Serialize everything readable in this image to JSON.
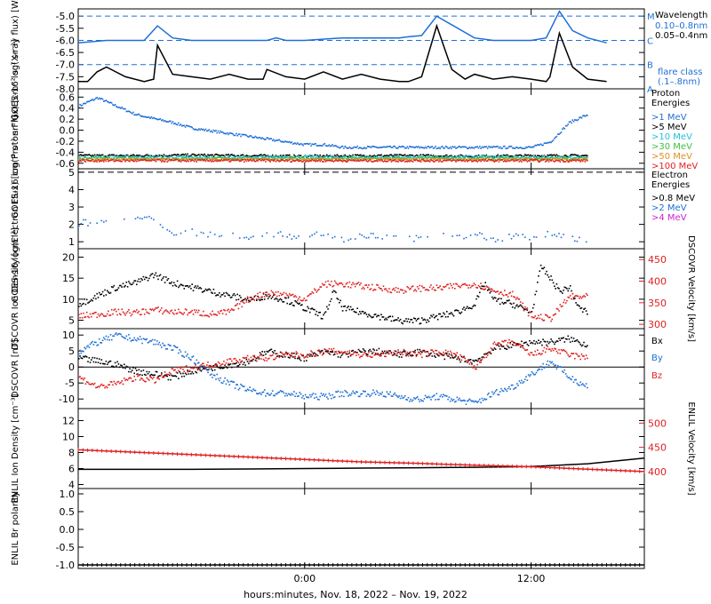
{
  "colors": {
    "black": "#000000",
    "blue": "#1f6fd6",
    "cyan": "#21c0e0",
    "green": "#40c040",
    "orange": "#e09020",
    "red": "#e02020",
    "magenta": "#d020d0"
  },
  "time_axis": {
    "xlabel": "hours:minutes, Nov. 18, 2022 – Nov. 19, 2022",
    "xlim_hours": [
      -12,
      18
    ],
    "ticks_hours": [
      0,
      12
    ],
    "tick_labels": [
      "0:00",
      "12:00"
    ]
  },
  "chart_data": [
    {
      "id": "xray",
      "type": "line",
      "ylabel": "GOES-16 log(X-ray flux) [W m⁻²]",
      "ylim": [
        -8,
        -4.7
      ],
      "yticks": [
        -8.0,
        -7.5,
        -7.0,
        -6.5,
        -6.0,
        -5.5,
        -5.0
      ],
      "tick_labels": [
        "-8.0",
        "-7.5",
        "-7.0",
        "-6.5",
        "-6.0",
        "-5.5",
        "-5.0"
      ],
      "flare_classes": [
        {
          "level": -5,
          "label": "M"
        },
        {
          "level": -6,
          "label": "C"
        },
        {
          "level": -7,
          "label": "B"
        },
        {
          "level": -8,
          "label": "A"
        }
      ],
      "legend_title": "Wavelength",
      "flare_class_note": [
        "flare class",
        "(.1–.8nm)"
      ],
      "series": [
        {
          "name": "0.10–0.8nm",
          "color": "#1f6fd6",
          "x": [
            -12,
            -10.5,
            -8.5,
            -7.8,
            -7,
            -6,
            -4,
            -2,
            -1.5,
            -1,
            0,
            2,
            4,
            5,
            5.5,
            6.2,
            7,
            9,
            10,
            11,
            12,
            12.8,
            13.5,
            14.2,
            15,
            16
          ],
          "y": [
            -6.1,
            -6.0,
            -6.0,
            -5.4,
            -5.9,
            -6.0,
            -6.0,
            -6.0,
            -5.9,
            -6.0,
            -6.0,
            -5.9,
            -5.9,
            -5.9,
            -5.85,
            -5.8,
            -5.0,
            -5.9,
            -6.0,
            -6.0,
            -6.0,
            -5.9,
            -4.8,
            -5.6,
            -5.9,
            -6.1
          ]
        },
        {
          "name": "0.05–0.4nm",
          "color": "#000000",
          "x": [
            -12,
            -11.5,
            -11,
            -10.5,
            -9.5,
            -8.5,
            -8,
            -7.8,
            -7,
            -6,
            -5,
            -4,
            -3,
            -2.2,
            -2,
            -1,
            0,
            1,
            2,
            3,
            4,
            5,
            5.5,
            6.2,
            7,
            7.8,
            8.5,
            9,
            10,
            11,
            12,
            12.8,
            13,
            13.5,
            14.2,
            15,
            16
          ],
          "y": [
            -7.7,
            -7.7,
            -7.3,
            -7.1,
            -7.5,
            -7.7,
            -7.6,
            -6.2,
            -7.4,
            -7.5,
            -7.6,
            -7.4,
            -7.6,
            -7.6,
            -7.2,
            -7.5,
            -7.6,
            -7.3,
            -7.6,
            -7.4,
            -7.6,
            -7.7,
            -7.7,
            -7.5,
            -5.4,
            -7.2,
            -7.6,
            -7.4,
            -7.6,
            -7.5,
            -7.6,
            -7.7,
            -7.5,
            -5.7,
            -7.1,
            -7.6,
            -7.7
          ]
        }
      ]
    },
    {
      "id": "proton",
      "type": "scatter",
      "ylabel": "GOES-16 log(Proton Flux) [cm⁻² s⁻¹ sr⁻¹]",
      "ylim": [
        -0.7,
        0.75
      ],
      "yticks": [
        -0.6,
        -0.4,
        -0.2,
        0.0,
        0.2,
        0.4,
        0.6
      ],
      "tick_labels": [
        "-0.6",
        "-0.4",
        "-0.2",
        "0.0",
        "0.2",
        "0.4",
        "0.6"
      ],
      "legend_title": [
        "Proton",
        "Energies"
      ],
      "series": [
        {
          "name": ">1 MeV",
          "color": "#1f6fd6",
          "x": [
            -12,
            -11,
            -10,
            -9,
            -8,
            -7,
            -6,
            -5,
            -4,
            -3,
            -2,
            -1,
            0,
            1,
            2,
            3,
            4,
            5,
            6,
            7,
            8,
            9,
            10,
            11,
            12,
            13,
            14,
            15
          ],
          "y": [
            0.45,
            0.6,
            0.45,
            0.3,
            0.22,
            0.15,
            0.05,
            0.0,
            -0.05,
            -0.1,
            -0.15,
            -0.2,
            -0.25,
            -0.25,
            -0.3,
            -0.3,
            -0.3,
            -0.3,
            -0.3,
            -0.3,
            -0.3,
            -0.3,
            -0.3,
            -0.3,
            -0.3,
            -0.2,
            0.15,
            0.3
          ]
        },
        {
          "name": ">5 MeV",
          "color": "#000000",
          "x": [
            -12,
            -9,
            -6,
            -3,
            0,
            3,
            6,
            9,
            12,
            15
          ],
          "y": [
            -0.45,
            -0.45,
            -0.44,
            -0.45,
            -0.46,
            -0.45,
            -0.45,
            -0.46,
            -0.45,
            -0.45
          ]
        },
        {
          "name": ">10 MeV",
          "color": "#21c0e0",
          "x": [
            -12,
            -9,
            -6,
            -3,
            0,
            3,
            6,
            9,
            12,
            15
          ],
          "y": [
            -0.48,
            -0.47,
            -0.48,
            -0.48,
            -0.47,
            -0.48,
            -0.48,
            -0.47,
            -0.48,
            -0.48
          ]
        },
        {
          "name": ">30 MeV",
          "color": "#40c040",
          "x": [
            -12,
            -9,
            -6,
            -3,
            0,
            3,
            6,
            9,
            12,
            15
          ],
          "y": [
            -0.5,
            -0.5,
            -0.5,
            -0.5,
            -0.5,
            -0.5,
            -0.5,
            -0.5,
            -0.5,
            -0.5
          ]
        },
        {
          "name": ">50 MeV",
          "color": "#e09020",
          "x": [
            -12,
            -9,
            -6,
            -3,
            0,
            3,
            6,
            9,
            12,
            15
          ],
          "y": [
            -0.52,
            -0.52,
            -0.52,
            -0.52,
            -0.52,
            -0.52,
            -0.52,
            -0.52,
            -0.52,
            -0.52
          ]
        },
        {
          "name": ">100 MeV",
          "color": "#e02020",
          "x": [
            -12,
            -9,
            -6,
            -3,
            0,
            3,
            6,
            9,
            12,
            15
          ],
          "y": [
            -0.54,
            -0.54,
            -0.54,
            -0.54,
            -0.54,
            -0.54,
            -0.54,
            -0.54,
            -0.54,
            -0.54
          ]
        }
      ]
    },
    {
      "id": "electron",
      "type": "scatter",
      "ylabel": "GOES-16 log(Electron Flux) [cm⁻² s⁻¹ sr⁻¹]",
      "ylim": [
        0.6,
        5.2
      ],
      "yticks": [
        1,
        2,
        3,
        4,
        5
      ],
      "tick_labels": [
        "1",
        "2",
        "3",
        "4",
        "5"
      ],
      "reference_line": 5,
      "legend_title": [
        "Electron",
        "Energies"
      ],
      "series": [
        {
          "name": ">0.8 MeV",
          "color": "#000000",
          "x": [],
          "y": []
        },
        {
          "name": ">2 MeV",
          "color": "#1f6fd6",
          "x": [
            -12,
            -11,
            -10,
            -9,
            -8.5,
            -8,
            -7,
            -6,
            -5,
            -4,
            -3,
            -2,
            -1,
            0,
            1,
            2,
            3,
            4,
            5,
            6,
            7,
            8,
            9,
            10,
            11,
            12,
            13,
            14,
            15
          ],
          "y": [
            2.1,
            2.2,
            2.1,
            2.4,
            2.6,
            2.2,
            1.5,
            1.6,
            1.4,
            1.5,
            1.3,
            1.5,
            1.4,
            1.3,
            1.5,
            1.2,
            1.4,
            1.3,
            1.4,
            1.2,
            1.4,
            1.3,
            1.5,
            1.1,
            1.4,
            1.2,
            1.5,
            1.3,
            1.0
          ]
        },
        {
          "name": ">4 MeV",
          "color": "#d020d0",
          "x": [],
          "y": []
        }
      ]
    },
    {
      "id": "dscovr_density",
      "type": "scatter",
      "ylabel": "DSCOVR Ion Density [cm⁻³]",
      "ylim": [
        3,
        22
      ],
      "yticks": [
        5,
        10,
        15,
        20
      ],
      "tick_labels": [
        "5",
        "10",
        "15",
        "20"
      ],
      "y2label": "DSCOVR Velocity [km/s]",
      "y2lim": [
        290,
        475
      ],
      "y2ticks": [
        300,
        350,
        400,
        450
      ],
      "y2tick_labels": [
        "300",
        "350",
        "400",
        "450"
      ],
      "series": [
        {
          "name": "Density",
          "color": "#000000",
          "axis": "left",
          "x": [
            -12,
            -11,
            -10,
            -9,
            -8,
            -7,
            -6,
            -5,
            -4,
            -3,
            -2,
            -1,
            0,
            1,
            1.5,
            2,
            3,
            4,
            5,
            6,
            7,
            8,
            9,
            9.5,
            10,
            11,
            12,
            12.5,
            13,
            13.5,
            14,
            14.5,
            15
          ],
          "y": [
            9,
            11,
            13,
            14,
            16,
            14,
            13,
            12,
            11,
            10,
            11,
            10,
            8,
            6,
            12,
            8,
            7,
            6,
            5,
            5,
            6,
            7,
            9,
            14,
            10,
            9,
            7,
            18,
            15,
            12,
            13,
            8,
            7
          ]
        },
        {
          "name": "Velocity",
          "color": "#e02020",
          "axis": "right",
          "x": [
            -12,
            -11,
            -10,
            -9,
            -8,
            -7,
            -6,
            -5,
            -4,
            -3,
            -2,
            -1,
            0,
            1,
            2,
            3,
            4,
            5,
            6,
            7,
            8,
            9,
            10,
            11,
            12,
            13,
            14,
            15
          ],
          "y": [
            320,
            325,
            330,
            328,
            335,
            330,
            330,
            325,
            330,
            360,
            375,
            370,
            360,
            395,
            395,
            390,
            385,
            380,
            385,
            385,
            390,
            395,
            380,
            370,
            320,
            315,
            365,
            365
          ]
        }
      ]
    },
    {
      "id": "dscovr_field",
      "type": "scatter",
      "ylabel": "DSCOVR [nT]",
      "ylim": [
        -13,
        12
      ],
      "yticks": [
        -10,
        -5,
        0,
        5,
        10
      ],
      "tick_labels": [
        "-10",
        "-5",
        "0",
        "5",
        "10"
      ],
      "zero_line": true,
      "series": [
        {
          "name": "Bx",
          "color": "#000000",
          "x": [
            -12,
            -11,
            -10,
            -9,
            -8,
            -7,
            -6,
            -5,
            -4,
            -3,
            -2,
            -1,
            0,
            1,
            2,
            3,
            4,
            5,
            6,
            7,
            8,
            9,
            10,
            11,
            12,
            13,
            14,
            15
          ],
          "y": [
            3,
            2,
            1,
            -1,
            -2,
            -3,
            -1,
            0,
            1,
            2,
            5,
            4,
            3,
            5,
            4,
            5,
            5,
            4,
            5,
            4,
            3,
            2,
            6,
            7,
            8,
            8,
            9,
            7
          ]
        },
        {
          "name": "By",
          "color": "#1f6fd6",
          "x": [
            -12,
            -11,
            -10,
            -9,
            -8,
            -7,
            -6,
            -5,
            -4,
            -3,
            -2,
            -1,
            0,
            1,
            2,
            3,
            4,
            5,
            6,
            7,
            8,
            9,
            10,
            11,
            12,
            13,
            14,
            15
          ],
          "y": [
            5,
            8,
            10,
            9,
            8,
            6,
            3,
            -2,
            -5,
            -7,
            -8,
            -8,
            -9,
            -9,
            -8,
            -8,
            -8,
            -9,
            -10,
            -9,
            -10,
            -11,
            -8,
            -6,
            -2,
            2,
            -3,
            -6
          ]
        },
        {
          "name": "Bz",
          "color": "#e02020",
          "x": [
            -12,
            -11,
            -10,
            -9,
            -8,
            -7,
            -6,
            -5,
            -4,
            -3,
            -2,
            -1,
            0,
            1,
            2,
            3,
            4,
            5,
            6,
            7,
            8,
            9,
            10,
            11,
            12,
            13,
            14,
            15
          ],
          "y": [
            -3,
            -6,
            -5,
            -3,
            -4,
            -1,
            0,
            1,
            2,
            3,
            3,
            4,
            4,
            5,
            5,
            4,
            4,
            5,
            4,
            5,
            4,
            0,
            7,
            8,
            4,
            6,
            4,
            3
          ]
        }
      ]
    },
    {
      "id": "enlil_density",
      "type": "line",
      "ylabel": "ENLIL Ion Density [cm⁻³]",
      "ylim": [
        3.5,
        13.5
      ],
      "yticks": [
        4,
        6,
        8,
        10,
        12
      ],
      "tick_labels": [
        "4",
        "6",
        "8",
        "10",
        "12"
      ],
      "y2label": "ENLIL Velocity [km/s]",
      "y2lim": [
        365,
        530
      ],
      "y2ticks": [
        400,
        450,
        500
      ],
      "y2tick_labels": [
        "400",
        "450",
        "500"
      ],
      "series": [
        {
          "name": "Density",
          "color": "#000000",
          "axis": "left",
          "x": [
            -12,
            -9,
            -6,
            -3,
            0,
            3,
            6,
            9,
            12,
            15,
            18
          ],
          "y": [
            5.9,
            5.9,
            5.9,
            5.95,
            6.0,
            6.05,
            6.1,
            6.15,
            6.25,
            6.6,
            7.3
          ]
        },
        {
          "name": "Velocity",
          "color": "#e02020",
          "axis": "right",
          "x": [
            -12,
            -9,
            -6,
            -3,
            0,
            3,
            6,
            9,
            12,
            15,
            18
          ],
          "y": [
            445,
            440,
            435,
            430,
            425,
            420,
            417,
            413,
            410,
            405,
            400
          ]
        }
      ]
    },
    {
      "id": "enlil_polarity",
      "type": "line",
      "ylabel": "ENLIL Br polarity",
      "ylim": [
        -1.1,
        1.15
      ],
      "yticks": [
        -1.0,
        -0.5,
        0.0,
        0.5,
        1.0
      ],
      "tick_labels": [
        "-1.0",
        "-0.5",
        "0.0",
        "0.5",
        "1.0"
      ],
      "series": [
        {
          "name": "Polarity",
          "color": "#000000",
          "x": [
            -12,
            18
          ],
          "y": [
            -1.0,
            -1.0
          ]
        }
      ]
    }
  ]
}
